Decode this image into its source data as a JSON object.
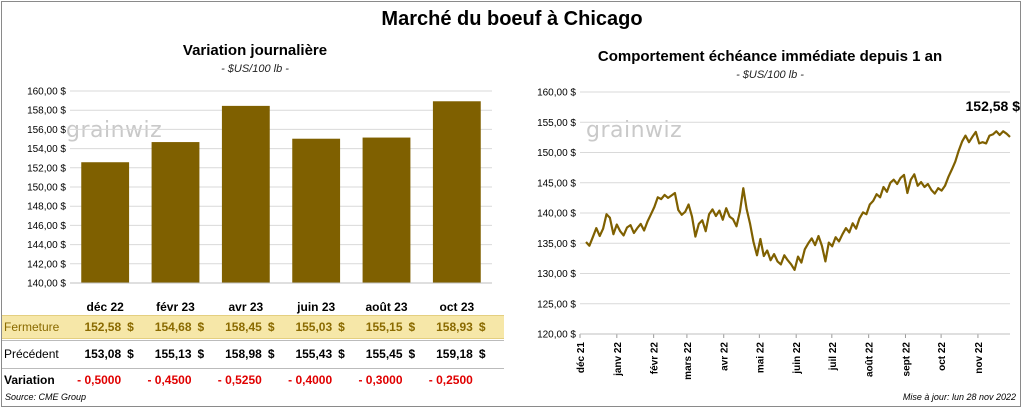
{
  "main_title": "Marché du boeuf à Chicago",
  "left_panel": {
    "title": "Variation  journalière",
    "unit": "- $US/100 lb -",
    "logo": "grainwiz",
    "rows": {
      "close_label": "Fermeture",
      "prev_label": "Précédent",
      "var_label": "Variation",
      "currency": "$",
      "close": [
        "152,58",
        "154,68",
        "158,45",
        "155,03",
        "155,15",
        "158,93"
      ],
      "prev": [
        "153,08",
        "155,13",
        "158,98",
        "155,43",
        "155,45",
        "159,18"
      ],
      "var": [
        "- 0,5000",
        "- 0,4500",
        "- 0,5250",
        "- 0,4000",
        "- 0,3000",
        "- 0,2500"
      ]
    }
  },
  "right_panel": {
    "title": "Comportement  échéance immédiate depuis 1 an",
    "unit": "- $US/100 lb -",
    "logo": "grainwiz",
    "last_label": "152,58 $"
  },
  "footer": {
    "source": "Source: CME Group",
    "updated": "Mise à jour: lun 28 nov 2022"
  },
  "colors": {
    "bar": "#7f6000",
    "line": "#7f6000",
    "close_bg": "#f6e7a8",
    "negative": "#e00000"
  },
  "chart_data": [
    {
      "type": "bar",
      "title": "Variation  journalière",
      "subtitle": "- $US/100 lb -",
      "categories": [
        "déc 22",
        "févr 23",
        "avr 23",
        "juin 23",
        "août 23",
        "oct 23"
      ],
      "values": [
        152.58,
        154.68,
        158.45,
        155.03,
        155.15,
        158.93
      ],
      "ylim": [
        140,
        160
      ],
      "yticks": [
        "140,00 $",
        "142,00 $",
        "144,00 $",
        "146,00 $",
        "148,00 $",
        "150,00 $",
        "152,00 $",
        "154,00 $",
        "156,00 $",
        "158,00 $",
        "160,00 $"
      ],
      "ytick_values": [
        140,
        142,
        144,
        146,
        148,
        150,
        152,
        154,
        156,
        158,
        160
      ],
      "grid": true,
      "legend": "none"
    },
    {
      "type": "line",
      "title": "Comportement  échéance immédiate depuis 1 an",
      "subtitle": "- $US/100 lb -",
      "x_labels": [
        "déc 21",
        "janv 22",
        "févr 22",
        "mars 22",
        "avr 22",
        "mai 22",
        "juin 22",
        "juil 22",
        "août 22",
        "sept 22",
        "oct 22",
        "nov 22"
      ],
      "x_range": [
        "2021-12-01",
        "2022-11-28"
      ],
      "ylim": [
        120,
        160
      ],
      "yticks": [
        "120,00 $",
        "125,00 $",
        "130,00 $",
        "135,00 $",
        "140,00 $",
        "145,00 $",
        "150,00 $",
        "155,00 $",
        "160,00 $"
      ],
      "ytick_values": [
        120,
        125,
        130,
        135,
        140,
        145,
        150,
        155,
        160
      ],
      "grid": true,
      "legend": "none",
      "series": [
        {
          "values": [
            135.2,
            134.6,
            136.0,
            137.5,
            136.2,
            137.4,
            139.8,
            139.2,
            136.5,
            138.1,
            137.0,
            136.3,
            137.6,
            138.0,
            136.7,
            137.5,
            138.2,
            137.1,
            138.6,
            139.8,
            141.0,
            142.6,
            142.3,
            143.0,
            142.5,
            142.9,
            143.3,
            140.5,
            139.7,
            140.2,
            141.4,
            139.4,
            136.1,
            138.2,
            138.8,
            137.0,
            139.8,
            140.6,
            139.5,
            140.4,
            138.9,
            140.8,
            139.4,
            139.0,
            137.8,
            140.2,
            144.1,
            140.6,
            138.2,
            135.2,
            133.0,
            135.7,
            132.9,
            133.8,
            132.2,
            133.2,
            132.0,
            131.5,
            133.0,
            132.2,
            131.5,
            130.6,
            132.8,
            131.8,
            134.0,
            135.0,
            135.8,
            134.7,
            136.2,
            134.6,
            132.0,
            135.1,
            134.5,
            136.0,
            135.3,
            136.5,
            137.5,
            136.8,
            138.3,
            137.4,
            139.1,
            140.1,
            139.8,
            141.4,
            142.0,
            143.1,
            142.6,
            144.3,
            143.5,
            145.0,
            145.5,
            144.8,
            145.8,
            146.3,
            143.3,
            145.5,
            146.4,
            144.5,
            145.1,
            144.3,
            144.8,
            143.8,
            143.2,
            144.1,
            143.7,
            144.5,
            146.0,
            147.2,
            148.5,
            150.3,
            151.8,
            152.8,
            151.7,
            152.6,
            153.4,
            151.5,
            151.7,
            151.5,
            152.8,
            153.0,
            153.5,
            152.9,
            153.5,
            153.1,
            152.58
          ]
        }
      ]
    }
  ]
}
